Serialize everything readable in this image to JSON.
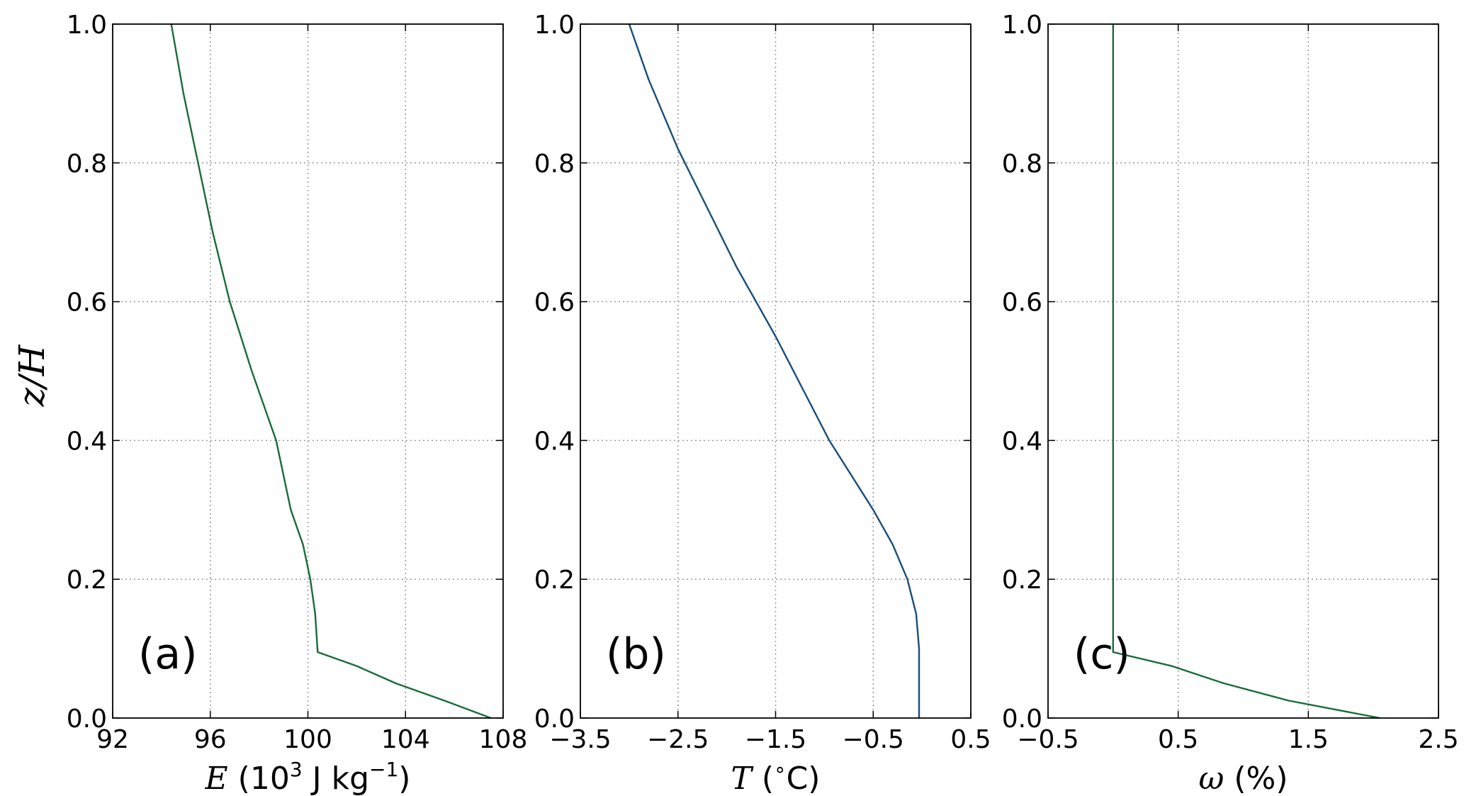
{
  "chart_data": [
    {
      "type": "line",
      "panel_label": "(a)",
      "xlabel": {
        "var": "E",
        "pre": "(10",
        "sup": "3",
        "mid": " J kg",
        "sup2": "−1",
        "post": ")"
      },
      "ylabel": "z/H",
      "xlim": [
        92,
        108
      ],
      "ylim": [
        0,
        1
      ],
      "xticks": [
        "92",
        "96",
        "100",
        "104",
        "108"
      ],
      "yticks": [
        "0.0",
        "0.2",
        "0.4",
        "0.6",
        "0.8",
        "1.0"
      ],
      "grid": true,
      "series": [
        {
          "color": "#1a6b3a",
          "points": [
            [
              107.5,
              0.0
            ],
            [
              105.6,
              0.025
            ],
            [
              103.6,
              0.05
            ],
            [
              102.0,
              0.075
            ],
            [
              100.4,
              0.095
            ],
            [
              100.3,
              0.15
            ],
            [
              100.1,
              0.2
            ],
            [
              99.8,
              0.25
            ],
            [
              99.3,
              0.3
            ],
            [
              98.7,
              0.4
            ],
            [
              97.7,
              0.5
            ],
            [
              96.8,
              0.6
            ],
            [
              96.1,
              0.7
            ],
            [
              95.5,
              0.8
            ],
            [
              94.9,
              0.9
            ],
            [
              94.4,
              1.0
            ]
          ]
        }
      ]
    },
    {
      "type": "line",
      "panel_label": "(b)",
      "xlabel": {
        "var": "T",
        "pre": "(",
        "sup": "∘",
        "mid": "C",
        "sup2": "",
        "post": ")"
      },
      "ylabel": "",
      "xlim": [
        -3.5,
        0.5
      ],
      "ylim": [
        0,
        1
      ],
      "xticks": [
        "−3.5",
        "−2.5",
        "−1.5",
        "−0.5",
        "0.5"
      ],
      "yticks": [
        "0.0",
        "0.2",
        "0.4",
        "0.6",
        "0.8",
        "1.0"
      ],
      "grid": true,
      "series": [
        {
          "color": "#1a4e7a",
          "points": [
            [
              -0.03,
              0.0
            ],
            [
              -0.03,
              0.1
            ],
            [
              -0.06,
              0.15
            ],
            [
              -0.15,
              0.2
            ],
            [
              -0.3,
              0.25
            ],
            [
              -0.5,
              0.3
            ],
            [
              -0.95,
              0.4
            ],
            [
              -1.5,
              0.55
            ],
            [
              -1.9,
              0.65
            ],
            [
              -2.5,
              0.82
            ],
            [
              -2.8,
              0.92
            ],
            [
              -3.0,
              1.0
            ]
          ]
        }
      ]
    },
    {
      "type": "line",
      "panel_label": "(c)",
      "xlabel": {
        "var": "ω",
        "pre": "(%)",
        "sup": "",
        "mid": "",
        "sup2": "",
        "post": ""
      },
      "ylabel": "",
      "xlim": [
        -0.5,
        2.5
      ],
      "ylim": [
        0,
        1
      ],
      "xticks": [
        "−0.5",
        "0.5",
        "1.5",
        "2.5"
      ],
      "yticks": [
        "0.0",
        "0.2",
        "0.4",
        "0.6",
        "0.8",
        "1.0"
      ],
      "grid": true,
      "series": [
        {
          "color": "#1a6b3a",
          "points": [
            [
              2.05,
              0.0
            ],
            [
              1.35,
              0.025
            ],
            [
              0.85,
              0.05
            ],
            [
              0.45,
              0.075
            ],
            [
              0.0,
              0.095
            ],
            [
              0.0,
              1.0
            ]
          ]
        }
      ]
    }
  ]
}
